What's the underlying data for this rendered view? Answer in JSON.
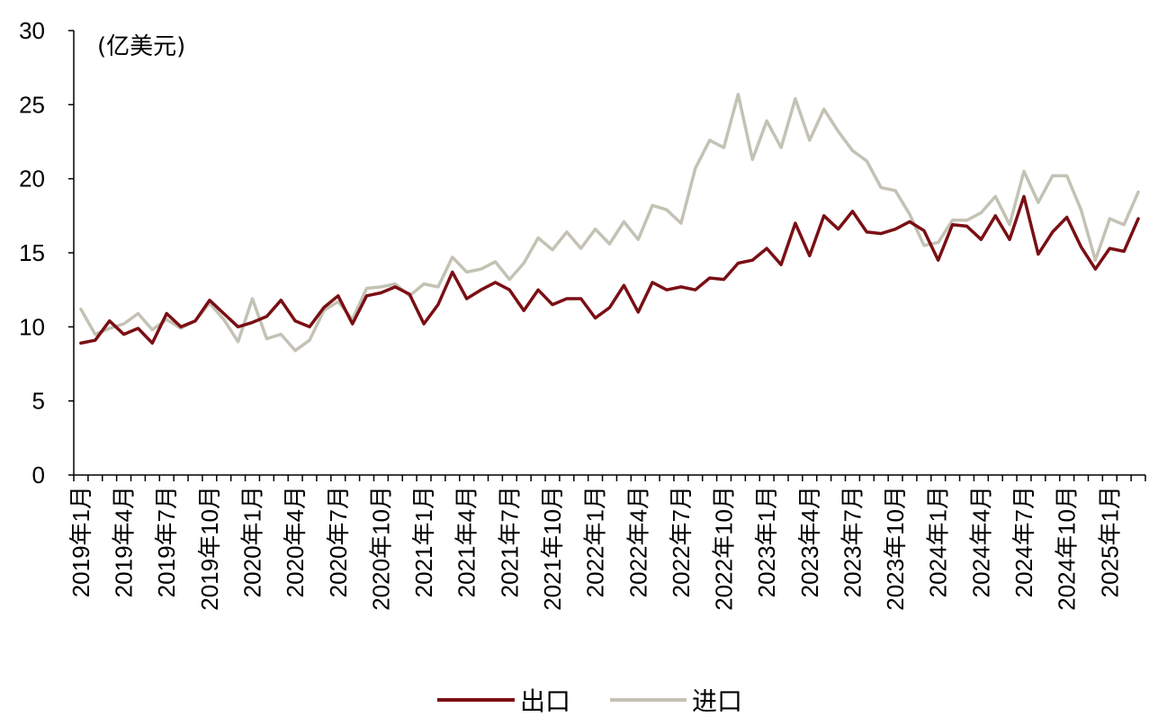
{
  "colors": {
    "export": "#7a0f14",
    "import": "#c3c2b4",
    "axis": "#000000",
    "background": "#ffffff"
  },
  "chart_data": {
    "type": "line",
    "unit_label": "(亿美元)",
    "ylim": [
      0,
      30
    ],
    "yticks": [
      0,
      5,
      10,
      15,
      20,
      25,
      30
    ],
    "grid": false,
    "legend_position": "bottom-center",
    "x_tick_labels": [
      "2019年1月",
      "2019年4月",
      "2019年7月",
      "2019年10月",
      "2020年1月",
      "2020年4月",
      "2020年7月",
      "2020年10月",
      "2021年1月",
      "2021年4月",
      "2021年7月",
      "2021年10月",
      "2022年1月",
      "2022年4月",
      "2022年7月",
      "2022年10月",
      "2023年1月",
      "2023年4月",
      "2023年7月",
      "2023年10月",
      "2024年1月",
      "2024年4月",
      "2024年7月",
      "2024年10月",
      "2025年1月"
    ],
    "x": [
      "2019-01",
      "2019-02",
      "2019-03",
      "2019-04",
      "2019-05",
      "2019-06",
      "2019-07",
      "2019-08",
      "2019-09",
      "2019-10",
      "2019-11",
      "2019-12",
      "2020-01",
      "2020-02",
      "2020-03",
      "2020-04",
      "2020-05",
      "2020-06",
      "2020-07",
      "2020-08",
      "2020-09",
      "2020-10",
      "2020-11",
      "2020-12",
      "2021-01",
      "2021-02",
      "2021-03",
      "2021-04",
      "2021-05",
      "2021-06",
      "2021-07",
      "2021-08",
      "2021-09",
      "2021-10",
      "2021-11",
      "2021-12",
      "2022-01",
      "2022-02",
      "2022-03",
      "2022-04",
      "2022-05",
      "2022-06",
      "2022-07",
      "2022-08",
      "2022-09",
      "2022-10",
      "2022-11",
      "2022-12",
      "2023-01",
      "2023-02",
      "2023-03",
      "2023-04",
      "2023-05",
      "2023-06",
      "2023-07",
      "2023-08",
      "2023-09",
      "2023-10",
      "2023-11",
      "2023-12",
      "2024-01",
      "2024-02",
      "2024-03",
      "2024-04",
      "2024-05",
      "2024-06",
      "2024-07",
      "2024-08",
      "2024-09",
      "2024-10",
      "2024-11",
      "2024-12",
      "2025-01",
      "2025-02",
      "2025-03"
    ],
    "series": [
      {
        "name": "出口",
        "color": "#7a0f14",
        "values": [
          8.9,
          9.1,
          10.4,
          9.5,
          9.9,
          8.9,
          10.9,
          10.0,
          10.4,
          11.8,
          10.9,
          10.0,
          10.3,
          10.7,
          11.8,
          10.4,
          10.0,
          11.3,
          12.1,
          10.2,
          12.1,
          12.3,
          12.7,
          12.2,
          10.2,
          11.5,
          13.7,
          11.9,
          12.5,
          13.0,
          12.5,
          11.1,
          12.5,
          11.5,
          11.9,
          11.9,
          10.6,
          11.3,
          12.8,
          11.0,
          13.0,
          12.5,
          12.7,
          12.5,
          13.3,
          13.2,
          14.3,
          14.5,
          15.3,
          14.2,
          17.0,
          14.8,
          17.5,
          16.6,
          17.8,
          16.4,
          16.3,
          16.6,
          17.1,
          16.5,
          14.5,
          16.9,
          16.8,
          15.9,
          17.5,
          15.9,
          18.8,
          14.9,
          16.4,
          17.4,
          15.4,
          13.9,
          15.3,
          15.1,
          17.3
        ]
      },
      {
        "name": "进口",
        "color": "#c3c2b4",
        "values": [
          11.2,
          9.5,
          9.9,
          10.2,
          10.9,
          9.8,
          10.5,
          9.9,
          10.4,
          11.6,
          10.5,
          9.0,
          11.9,
          9.2,
          9.5,
          8.4,
          9.1,
          11.1,
          11.7,
          10.5,
          12.6,
          12.7,
          12.9,
          12.1,
          12.9,
          12.7,
          14.7,
          13.7,
          13.9,
          14.4,
          13.2,
          14.3,
          16.0,
          15.2,
          16.4,
          15.3,
          16.6,
          15.6,
          17.1,
          15.9,
          18.2,
          17.9,
          17.0,
          20.7,
          22.6,
          22.1,
          25.7,
          21.3,
          23.9,
          22.1,
          25.4,
          22.6,
          24.7,
          23.2,
          21.9,
          21.2,
          19.4,
          19.2,
          17.6,
          15.5,
          15.7,
          17.2,
          17.2,
          17.7,
          18.8,
          16.9,
          20.5,
          18.4,
          20.2,
          20.2,
          17.9,
          14.5,
          17.3,
          16.9,
          19.1
        ]
      }
    ]
  }
}
